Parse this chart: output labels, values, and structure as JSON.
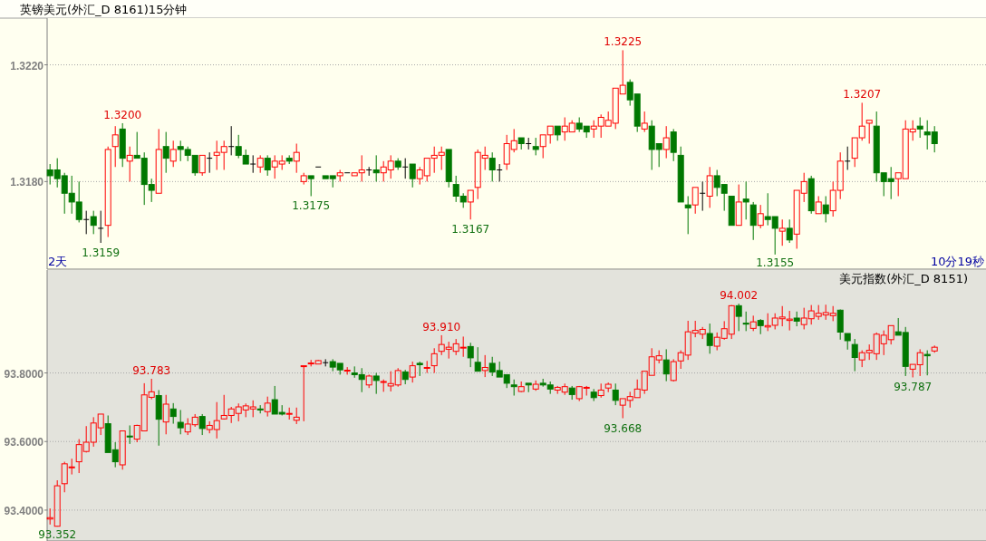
{
  "chart_data": [
    {
      "type": "candlestick",
      "title": "英镑美元(外汇_D 8161)15分钟",
      "grid": "y",
      "ylim": [
        1.315,
        1.3236
      ],
      "yticks": [
        {
          "value": 1.318,
          "label": "1.3180"
        },
        {
          "value": 1.322,
          "label": "1.3220"
        }
      ],
      "annotations": [
        "2天",
        "10分19秒",
        {
          "text": "1.3200",
          "y": 1.32
        },
        {
          "text": "1.3159",
          "y": 1.3159
        },
        {
          "text": "1.3175",
          "y": 1.3175
        },
        {
          "text": "1.3167",
          "y": 1.3167
        },
        {
          "text": "1.3225",
          "y": 1.3225
        },
        {
          "text": "1.3155",
          "y": 1.3155
        },
        {
          "text": "1.3207",
          "y": 1.3207
        }
      ],
      "categories": [
        null,
        null,
        null,
        null,
        null,
        null,
        null,
        null,
        null,
        null,
        null,
        null,
        null,
        null,
        null,
        null,
        null,
        null,
        null,
        null,
        null,
        null,
        null,
        null,
        null,
        null,
        null,
        null,
        null,
        null,
        null,
        null,
        null,
        null,
        null,
        null,
        null,
        null,
        null,
        null,
        null,
        null,
        null,
        null,
        null,
        null,
        null,
        null,
        null,
        null,
        null,
        null,
        null,
        null,
        null,
        null,
        null,
        null,
        null,
        null,
        null,
        null,
        null,
        null,
        null,
        null,
        null,
        null,
        null,
        null,
        null,
        null,
        null,
        null,
        null,
        null,
        null,
        null,
        null,
        null,
        null,
        null,
        null,
        null,
        null,
        null,
        null,
        null,
        null,
        null,
        null,
        null,
        null,
        null,
        null,
        null,
        null,
        null,
        null,
        null,
        null,
        null,
        null,
        null,
        null,
        null,
        null,
        null,
        null,
        null,
        null,
        null,
        null,
        null,
        null,
        null,
        null,
        null,
        null,
        null,
        null,
        null,
        null
      ],
      "ohlc": [
        [
          1.3184,
          1.3186,
          1.3179,
          1.3182
        ],
        [
          1.3184,
          1.3188,
          1.3178,
          1.3181
        ],
        [
          1.3182,
          1.3183,
          1.3169,
          1.3176
        ],
        [
          1.3176,
          1.3182,
          1.3169,
          1.3173
        ],
        [
          1.3173,
          1.318,
          1.3166,
          1.3167
        ],
        [
          1.3167,
          1.317,
          1.3162,
          1.3167
        ],
        [
          1.3168,
          1.317,
          1.3162,
          1.3165
        ],
        [
          1.3164,
          1.317,
          1.3159,
          1.3164
        ],
        [
          1.3165,
          1.3192,
          1.3161,
          1.3191
        ],
        [
          1.3192,
          1.3199,
          1.3185,
          1.3196
        ],
        [
          1.3198,
          1.32,
          1.3185,
          1.3188
        ],
        [
          1.3187,
          1.3192,
          1.318,
          1.3189
        ],
        [
          1.3189,
          1.3197,
          1.3188,
          1.3188
        ],
        [
          1.3188,
          1.319,
          1.3172,
          1.3179
        ],
        [
          1.3179,
          1.3181,
          1.3173,
          1.3177
        ],
        [
          1.3176,
          1.3198,
          1.3176,
          1.3191
        ],
        [
          1.3192,
          1.3197,
          1.3183,
          1.3188
        ],
        [
          1.3187,
          1.3194,
          1.3185,
          1.3191
        ],
        [
          1.3192,
          1.3194,
          1.3187,
          1.3191
        ],
        [
          1.3191,
          1.3192,
          1.3187,
          1.3189
        ],
        [
          1.3189,
          1.3189,
          1.3182,
          1.3183
        ],
        [
          1.3183,
          1.3189,
          1.3182,
          1.3189
        ],
        [
          1.3188,
          1.319,
          1.3183,
          1.3188
        ],
        [
          1.3189,
          1.3194,
          1.3184,
          1.319
        ],
        [
          1.319,
          1.3194,
          1.3184,
          1.3192
        ],
        [
          1.3192,
          1.3199,
          1.3189,
          1.3192
        ],
        [
          1.3192,
          1.3196,
          1.3188,
          1.3189
        ],
        [
          1.3189,
          1.3191,
          1.3186,
          1.3186
        ],
        [
          1.3186,
          1.3189,
          1.3183,
          1.3186
        ],
        [
          1.3185,
          1.3189,
          1.3183,
          1.3188
        ],
        [
          1.3188,
          1.3189,
          1.3182,
          1.3184
        ],
        [
          1.3185,
          1.3189,
          1.3181,
          1.3187
        ],
        [
          1.3186,
          1.3189,
          1.3184,
          1.3187
        ],
        [
          1.3188,
          1.3189,
          1.3186,
          1.3187
        ],
        [
          1.3187,
          1.3193,
          1.3183,
          1.319
        ],
        [
          1.318,
          1.3183,
          1.3179,
          1.3182
        ],
        [
          1.3182,
          1.3182,
          1.3175,
          1.3181
        ],
        [
          1.3185,
          1.3185,
          1.3185,
          1.3185
        ],
        [
          1.3182,
          1.3182,
          1.3181,
          1.3181
        ],
        [
          1.3182,
          1.3182,
          1.3178,
          1.3181
        ],
        [
          1.3182,
          1.3184,
          1.318,
          1.3183
        ],
        [
          1.3183,
          1.3183,
          1.3183,
          1.3183
        ],
        [
          1.3182,
          1.3183,
          1.3182,
          1.3183
        ],
        [
          1.3183,
          1.3189,
          1.318,
          1.3184
        ],
        [
          1.3184,
          1.3185,
          1.3182,
          1.3184
        ],
        [
          1.3184,
          1.3189,
          1.318,
          1.3183
        ],
        [
          1.3183,
          1.3187,
          1.318,
          1.3185
        ],
        [
          1.3184,
          1.3189,
          1.3181,
          1.3187
        ],
        [
          1.3187,
          1.3188,
          1.3184,
          1.3185
        ],
        [
          1.3185,
          1.3188,
          1.3181,
          1.3185
        ],
        [
          1.3186,
          1.3186,
          1.3178,
          1.3181
        ],
        [
          1.3181,
          1.3185,
          1.3179,
          1.3184
        ],
        [
          1.3182,
          1.3188,
          1.318,
          1.3188
        ],
        [
          1.3188,
          1.3192,
          1.3183,
          1.3189
        ],
        [
          1.3189,
          1.3192,
          1.3184,
          1.319
        ],
        [
          1.3191,
          1.3191,
          1.3178,
          1.318
        ],
        [
          1.3179,
          1.3182,
          1.3173,
          1.3175
        ],
        [
          1.3175,
          1.3176,
          1.3171,
          1.3173
        ],
        [
          1.3173,
          1.3177,
          1.3167,
          1.3177
        ],
        [
          1.3178,
          1.3191,
          1.3174,
          1.319
        ],
        [
          1.3188,
          1.3192,
          1.3184,
          1.3189
        ],
        [
          1.3188,
          1.319,
          1.318,
          1.3184
        ],
        [
          1.3184,
          1.3186,
          1.318,
          1.3184
        ],
        [
          1.3186,
          1.3196,
          1.3184,
          1.3193
        ],
        [
          1.3191,
          1.3198,
          1.319,
          1.3194
        ],
        [
          1.3195,
          1.3195,
          1.3191,
          1.3193
        ],
        [
          1.3193,
          1.3195,
          1.3191,
          1.3193
        ],
        [
          1.3192,
          1.3195,
          1.3189,
          1.3191
        ],
        [
          1.3192,
          1.3196,
          1.3188,
          1.3196
        ],
        [
          1.3196,
          1.3199,
          1.3193,
          1.3199
        ],
        [
          1.3199,
          1.3199,
          1.3194,
          1.3196
        ],
        [
          1.3197,
          1.3202,
          1.3194,
          1.3199
        ],
        [
          1.3197,
          1.3201,
          1.3197,
          1.32
        ],
        [
          1.32,
          1.3202,
          1.3197,
          1.3198
        ],
        [
          1.3199,
          1.3199,
          1.3195,
          1.3197
        ],
        [
          1.3198,
          1.3201,
          1.3195,
          1.3199
        ],
        [
          1.3199,
          1.3203,
          1.3195,
          1.3202
        ],
        [
          1.3199,
          1.3204,
          1.3199,
          1.3201
        ],
        [
          1.32,
          1.3212,
          1.3198,
          1.3212
        ],
        [
          1.321,
          1.3225,
          1.321,
          1.3213
        ],
        [
          1.3214,
          1.3215,
          1.3206,
          1.3208
        ],
        [
          1.321,
          1.321,
          1.3197,
          1.3199
        ],
        [
          1.3198,
          1.3204,
          1.3197,
          1.32
        ],
        [
          1.3199,
          1.3201,
          1.3184,
          1.3191
        ],
        [
          1.3193,
          1.3193,
          1.3185,
          1.3191
        ],
        [
          1.3191,
          1.3199,
          1.3188,
          1.3195
        ],
        [
          1.3197,
          1.3198,
          1.3187,
          1.319
        ],
        [
          1.3189,
          1.3192,
          1.3173,
          1.3173
        ],
        [
          1.3172,
          1.3175,
          1.3162,
          1.3171
        ],
        [
          1.3172,
          1.3178,
          1.3169,
          1.3178
        ],
        [
          1.3176,
          1.318,
          1.317,
          1.3176
        ],
        [
          1.3175,
          1.3185,
          1.3171,
          1.3182
        ],
        [
          1.3182,
          1.3184,
          1.3175,
          1.3178
        ],
        [
          1.3179,
          1.3179,
          1.317,
          1.3176
        ],
        [
          1.3175,
          1.3175,
          1.3165,
          1.3165
        ],
        [
          1.3165,
          1.3179,
          1.3165,
          1.3173
        ],
        [
          1.3174,
          1.318,
          1.3167,
          1.3173
        ],
        [
          1.3172,
          1.3173,
          1.316,
          1.3165
        ],
        [
          1.3165,
          1.3172,
          1.3164,
          1.3169
        ],
        [
          1.3168,
          1.3176,
          1.3165,
          1.3167
        ],
        [
          1.3168,
          1.3168,
          1.3155,
          1.3164
        ],
        [
          1.3163,
          1.3167,
          1.3158,
          1.3164
        ],
        [
          1.3164,
          1.3167,
          1.3159,
          1.316
        ],
        [
          1.3162,
          1.3177,
          1.3157,
          1.3177
        ],
        [
          1.3176,
          1.3183,
          1.3173,
          1.318
        ],
        [
          1.3181,
          1.3182,
          1.3169,
          1.317
        ],
        [
          1.3169,
          1.3175,
          1.3169,
          1.3173
        ],
        [
          1.3172,
          1.3175,
          1.3166,
          1.3169
        ],
        [
          1.317,
          1.318,
          1.3168,
          1.3177
        ],
        [
          1.3177,
          1.319,
          1.3174,
          1.3187
        ],
        [
          1.3187,
          1.3192,
          1.3184,
          1.3187
        ],
        [
          1.3188,
          1.3195,
          1.3185,
          1.3195
        ],
        [
          1.3195,
          1.3207,
          1.3194,
          1.3199
        ],
        [
          1.32,
          1.3201,
          1.3193,
          1.3201
        ],
        [
          1.3199,
          1.3204,
          1.318,
          1.3183
        ],
        [
          1.3183,
          1.3183,
          1.3175,
          1.318
        ],
        [
          1.3181,
          1.3185,
          1.3174,
          1.318
        ],
        [
          1.3181,
          1.3183,
          1.3175,
          1.3183
        ],
        [
          1.3181,
          1.3201,
          1.3181,
          1.3198
        ],
        [
          1.3197,
          1.3201,
          1.3194,
          1.3198
        ],
        [
          1.3199,
          1.3202,
          1.3195,
          1.3198
        ],
        [
          1.3197,
          1.3201,
          1.3191,
          1.3196
        ],
        [
          1.3197,
          1.3199,
          1.319,
          1.3193
        ]
      ]
    },
    {
      "type": "candlestick",
      "title": "美元指数(外汇_D 8151)",
      "grid": "y",
      "ylim": [
        93.31,
        94.1
      ],
      "yticks": [
        {
          "value": 93.4,
          "label": "93.4000"
        },
        {
          "value": 93.6,
          "label": "93.6000"
        },
        {
          "value": 93.8,
          "label": "93.8000"
        }
      ],
      "annotations": [
        {
          "text": "93.352",
          "y": 93.352
        },
        {
          "text": "93.783",
          "y": 93.783
        },
        {
          "text": "93.910",
          "y": 93.91
        },
        {
          "text": "93.668",
          "y": 93.668
        },
        {
          "text": "94.002",
          "y": 94.002
        },
        {
          "text": "93.787",
          "y": 93.787
        }
      ],
      "categories": [
        null,
        null,
        null,
        null,
        null,
        null,
        null,
        null,
        null,
        null,
        null,
        null,
        null,
        null,
        null,
        null,
        null,
        null,
        null,
        null,
        null,
        null,
        null,
        null,
        null,
        null,
        null,
        null,
        null,
        null,
        null,
        null,
        null,
        null,
        null,
        null,
        null,
        null,
        null,
        null,
        null,
        null,
        null,
        null,
        null,
        null,
        null,
        null,
        null,
        null,
        null,
        null,
        null,
        null,
        null,
        null,
        null,
        null,
        null,
        null,
        null,
        null,
        null,
        null,
        null,
        null,
        null,
        null,
        null,
        null,
        null,
        null,
        null,
        null,
        null,
        null,
        null,
        null,
        null,
        null,
        null,
        null,
        null,
        null,
        null,
        null,
        null,
        null,
        null,
        null,
        null,
        null,
        null,
        null,
        null,
        null,
        null,
        null,
        null,
        null,
        null,
        null,
        null,
        null,
        null,
        null,
        null,
        null,
        null,
        null,
        null,
        null,
        null,
        null,
        null,
        null,
        null,
        null,
        null,
        null,
        null,
        null,
        null
      ],
      "ohlc": [
        [
          93.374,
          93.405,
          93.358,
          93.378
        ],
        [
          93.353,
          93.487,
          93.352,
          93.471
        ],
        [
          93.477,
          93.541,
          93.452,
          93.535
        ],
        [
          93.525,
          93.55,
          93.504,
          93.526
        ],
        [
          93.541,
          93.607,
          93.508,
          93.591
        ],
        [
          93.571,
          93.645,
          93.568,
          93.598
        ],
        [
          93.598,
          93.671,
          93.585,
          93.654
        ],
        [
          93.64,
          93.68,
          93.619,
          93.68
        ],
        [
          93.652,
          93.676,
          93.568,
          93.568
        ],
        [
          93.576,
          93.598,
          93.525,
          93.541
        ],
        [
          93.532,
          93.631,
          93.518,
          93.631
        ],
        [
          93.616,
          93.647,
          93.593,
          93.614
        ],
        [
          93.607,
          93.649,
          93.598,
          93.647
        ],
        [
          93.631,
          93.77,
          93.631,
          93.736
        ],
        [
          93.729,
          93.783,
          93.723,
          93.745
        ],
        [
          93.734,
          93.75,
          93.588,
          93.665
        ],
        [
          93.657,
          93.736,
          93.621,
          93.709
        ],
        [
          93.695,
          93.712,
          93.652,
          93.673
        ],
        [
          93.656,
          93.692,
          93.621,
          93.64
        ],
        [
          93.628,
          93.668,
          93.619,
          93.651
        ],
        [
          93.649,
          93.68,
          93.643,
          93.671
        ],
        [
          93.673,
          93.68,
          93.619,
          93.638
        ],
        [
          93.635,
          93.659,
          93.624,
          93.647
        ],
        [
          93.635,
          93.715,
          93.609,
          93.661
        ],
        [
          93.666,
          93.736,
          93.664,
          93.676
        ],
        [
          93.676,
          93.701,
          93.654,
          93.695
        ],
        [
          93.682,
          93.711,
          93.659,
          93.701
        ],
        [
          93.692,
          93.711,
          93.671,
          93.704
        ],
        [
          93.695,
          93.72,
          93.671,
          93.701
        ],
        [
          93.695,
          93.706,
          93.682,
          93.692
        ],
        [
          93.687,
          93.731,
          93.673,
          93.712
        ],
        [
          93.722,
          93.762,
          93.68,
          93.68
        ],
        [
          93.685,
          93.706,
          93.676,
          93.68
        ],
        [
          93.681,
          93.699,
          93.664,
          93.682
        ],
        [
          93.662,
          93.699,
          93.651,
          93.671
        ],
        [
          93.82,
          93.821,
          93.659,
          93.821
        ],
        [
          93.828,
          93.838,
          93.819,
          93.829
        ],
        [
          93.826,
          93.838,
          93.826,
          93.836
        ],
        [
          93.83,
          93.84,
          93.819,
          93.83
        ],
        [
          93.833,
          93.84,
          93.805,
          93.817
        ],
        [
          93.828,
          93.828,
          93.795,
          93.809
        ],
        [
          93.807,
          93.817,
          93.795,
          93.808
        ],
        [
          93.8,
          93.819,
          93.786,
          93.795
        ],
        [
          93.795,
          93.814,
          93.744,
          93.781
        ],
        [
          93.765,
          93.795,
          93.756,
          93.791
        ],
        [
          93.791,
          93.8,
          93.739,
          93.778
        ],
        [
          93.774,
          93.781,
          93.745,
          93.775
        ],
        [
          93.762,
          93.805,
          93.746,
          93.769
        ],
        [
          93.765,
          93.814,
          93.76,
          93.807
        ],
        [
          93.803,
          93.809,
          93.767,
          93.781
        ],
        [
          93.788,
          93.833,
          93.772,
          93.821
        ],
        [
          93.828,
          93.833,
          93.791,
          93.824
        ],
        [
          93.815,
          93.835,
          93.8,
          93.816
        ],
        [
          93.821,
          93.872,
          93.8,
          93.856
        ],
        [
          93.863,
          93.91,
          93.852,
          93.883
        ],
        [
          93.869,
          93.891,
          93.842,
          93.875
        ],
        [
          93.863,
          93.899,
          93.852,
          93.885
        ],
        [
          93.874,
          93.906,
          93.847,
          93.875
        ],
        [
          93.877,
          93.888,
          93.817,
          93.844
        ],
        [
          93.831,
          93.875,
          93.805,
          93.805
        ],
        [
          93.807,
          93.852,
          93.788,
          93.816
        ],
        [
          93.828,
          93.847,
          93.791,
          93.803
        ],
        [
          93.807,
          93.833,
          93.788,
          93.788
        ],
        [
          93.795,
          93.795,
          93.756,
          93.77
        ],
        [
          93.765,
          93.781,
          93.734,
          93.76
        ],
        [
          93.746,
          93.775,
          93.744,
          93.76
        ],
        [
          93.77,
          93.77,
          93.744,
          93.765
        ],
        [
          93.753,
          93.778,
          93.748,
          93.767
        ],
        [
          93.77,
          93.783,
          93.76,
          93.765
        ],
        [
          93.765,
          93.775,
          93.739,
          93.753
        ],
        [
          93.75,
          93.762,
          93.739,
          93.758
        ],
        [
          93.744,
          93.769,
          93.736,
          93.76
        ],
        [
          93.756,
          93.762,
          93.722,
          93.737
        ],
        [
          93.725,
          93.762,
          93.718,
          93.76
        ],
        [
          93.757,
          93.762,
          93.734,
          93.758
        ],
        [
          93.744,
          93.753,
          93.718,
          93.728
        ],
        [
          93.734,
          93.769,
          93.728,
          93.75
        ],
        [
          93.756,
          93.772,
          93.744,
          93.767
        ],
        [
          93.75,
          93.769,
          93.706,
          93.72
        ],
        [
          93.706,
          93.725,
          93.668,
          93.725
        ],
        [
          93.72,
          93.745,
          93.699,
          93.731
        ],
        [
          93.728,
          93.781,
          93.728,
          93.753
        ],
        [
          93.75,
          93.805,
          93.739,
          93.805
        ],
        [
          93.793,
          93.872,
          93.793,
          93.847
        ],
        [
          93.838,
          93.866,
          93.828,
          93.85
        ],
        [
          93.838,
          93.869,
          93.776,
          93.797
        ],
        [
          93.778,
          93.84,
          93.775,
          93.833
        ],
        [
          93.835,
          93.866,
          93.812,
          93.859
        ],
        [
          93.852,
          93.952,
          93.838,
          93.92
        ],
        [
          93.916,
          93.952,
          93.904,
          93.924
        ],
        [
          93.913,
          93.934,
          93.899,
          93.927
        ],
        [
          93.915,
          93.944,
          93.856,
          93.88
        ],
        [
          93.878,
          93.918,
          93.866,
          93.904
        ],
        [
          93.901,
          93.951,
          93.897,
          93.929
        ],
        [
          93.913,
          93.998,
          93.899,
          93.996
        ],
        [
          93.996,
          94.002,
          93.922,
          93.965
        ],
        [
          93.945,
          93.979,
          93.922,
          93.944
        ],
        [
          93.93,
          93.967,
          93.922,
          93.949
        ],
        [
          93.953,
          93.957,
          93.913,
          93.938
        ],
        [
          93.934,
          93.974,
          93.922,
          93.938
        ],
        [
          93.939,
          93.974,
          93.927,
          93.96
        ],
        [
          93.958,
          93.995,
          93.936,
          93.963
        ],
        [
          93.953,
          93.981,
          93.924,
          93.957
        ],
        [
          93.96,
          93.979,
          93.936,
          93.951
        ],
        [
          93.941,
          93.99,
          93.927,
          93.96
        ],
        [
          93.958,
          93.998,
          93.941,
          93.981
        ],
        [
          93.965,
          93.998,
          93.955,
          93.974
        ],
        [
          93.969,
          93.999,
          93.955,
          93.976
        ],
        [
          93.967,
          93.995,
          93.951,
          93.974
        ],
        [
          93.983,
          93.985,
          93.897,
          93.919
        ],
        [
          93.915,
          93.915,
          93.868,
          93.894
        ],
        [
          93.883,
          93.899,
          93.805,
          93.845
        ],
        [
          93.838,
          93.866,
          93.817,
          93.859
        ],
        [
          93.859,
          93.883,
          93.838,
          93.866
        ],
        [
          93.856,
          93.918,
          93.838,
          93.913
        ],
        [
          93.885,
          93.924,
          93.852,
          93.91
        ],
        [
          93.897,
          93.938,
          93.883,
          93.938
        ],
        [
          93.92,
          93.96,
          93.91,
          93.91
        ],
        [
          93.918,
          93.934,
          93.791,
          93.819
        ],
        [
          93.811,
          93.825,
          93.787,
          93.825
        ],
        [
          93.824,
          93.869,
          93.791,
          93.859
        ],
        [
          93.854,
          93.866,
          93.793,
          93.85
        ],
        [
          93.864,
          93.88,
          93.859,
          93.875
        ]
      ]
    }
  ]
}
